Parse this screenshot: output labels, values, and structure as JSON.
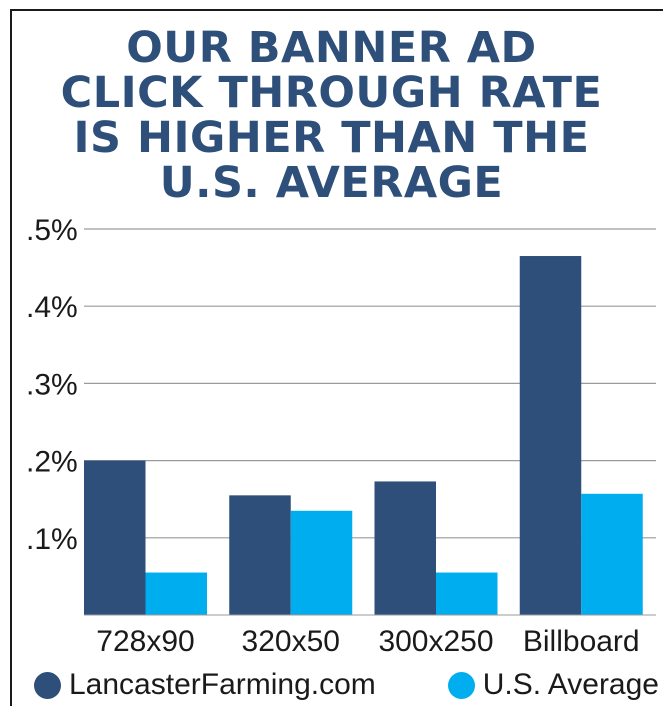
{
  "title_lines": [
    "OUR BANNER AD",
    "CLICK THROUGH RATE",
    "IS HIGHER THAN THE",
    "U.S. AVERAGE"
  ],
  "colors": {
    "title": "#2d4f79",
    "series_1": "#2d4f79",
    "series_2": "#00aeef",
    "grid": "#9a9a9a"
  },
  "chart_data": {
    "type": "bar",
    "title": "OUR BANNER AD CLICK THROUGH RATE IS HIGHER THAN THE U.S. AVERAGE",
    "categories": [
      "728x90",
      "320x50",
      "300x250",
      "Billboard"
    ],
    "series": [
      {
        "name": "LancasterFarming.com",
        "values": [
          0.2,
          0.155,
          0.173,
          0.465
        ]
      },
      {
        "name": "U.S. Average",
        "values": [
          0.055,
          0.135,
          0.055,
          0.157
        ]
      }
    ],
    "y_unit": "%",
    "ylim": [
      0,
      0.5
    ],
    "yticks": [
      {
        "value": 0.1,
        "label": ".1%"
      },
      {
        "value": 0.2,
        "label": ".2%"
      },
      {
        "value": 0.3,
        "label": ".3%"
      },
      {
        "value": 0.4,
        "label": ".4%"
      },
      {
        "value": 0.5,
        "label": ".5%"
      }
    ],
    "grid": true,
    "legend_position": "bottom"
  }
}
